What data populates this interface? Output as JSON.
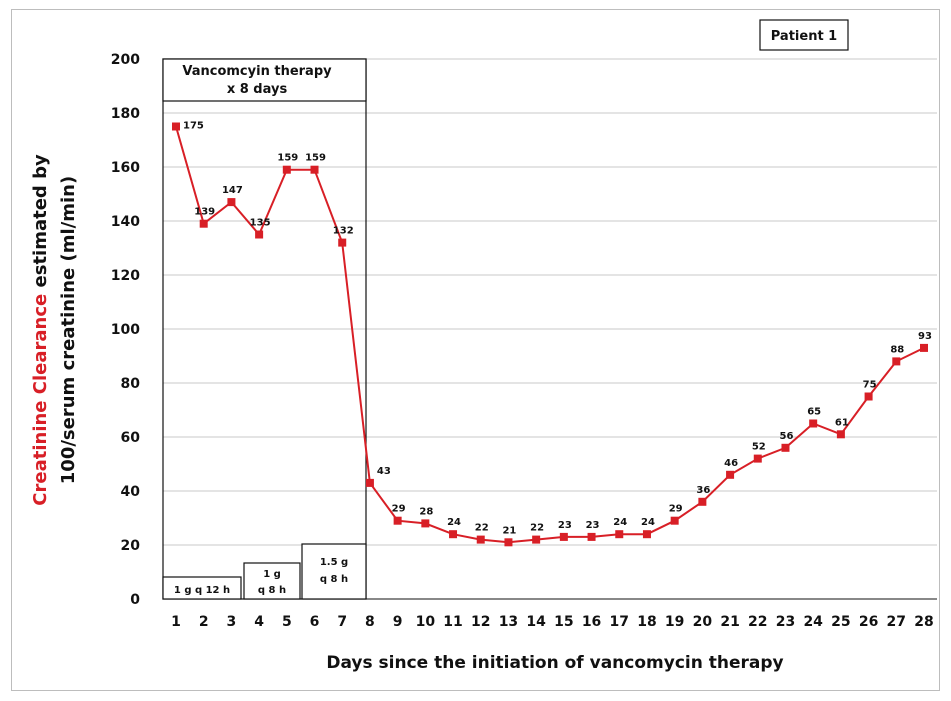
{
  "chart_data": {
    "type": "line",
    "x": [
      1,
      2,
      3,
      4,
      5,
      6,
      7,
      8,
      9,
      10,
      11,
      12,
      13,
      14,
      15,
      16,
      17,
      18,
      19,
      20,
      21,
      22,
      23,
      24,
      25,
      26,
      27,
      28
    ],
    "values": [
      175,
      139,
      147,
      135,
      159,
      159,
      132,
      43,
      29,
      28,
      24,
      22,
      21,
      22,
      23,
      23,
      24,
      24,
      29,
      36,
      46,
      52,
      56,
      65,
      61,
      75,
      88,
      93
    ],
    "xlabel": "Days since the initiation of vancomycin therapy",
    "ylabel": {
      "highlight": "Creatinine Clearance",
      "rest_line1": " estimated by",
      "line2": "100/serum creatinine (ml/min)"
    },
    "ylim": [
      0,
      200
    ],
    "yticks": [
      0,
      20,
      40,
      60,
      80,
      100,
      120,
      140,
      160,
      180,
      200
    ],
    "xlim": [
      1,
      28
    ],
    "grid": "horizontal",
    "legend": "none",
    "series_color": "#d81f26",
    "y_highlight_color": "#d81f26",
    "annotations": {
      "patient_label": "Patient 1",
      "therapy_line1": "Vancomcyin therapy",
      "therapy_line2": "x  8  days",
      "dose1": "1 g q 12 h",
      "dose2_line1": "1 g",
      "dose2_line2": "q 8 h",
      "dose3_line1": "1.5 g",
      "dose3_line2": "q 8 h"
    }
  }
}
